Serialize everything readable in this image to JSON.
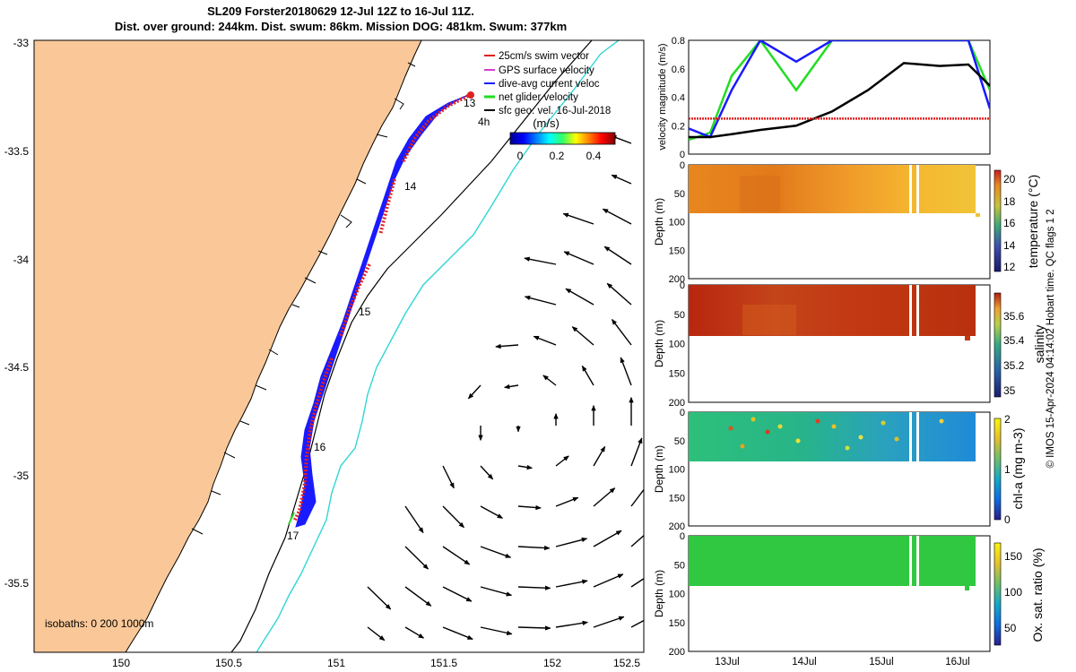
{
  "title_line1": "SL209 Forster20180629 12-Jul 12Z to 16-Jul 11Z.",
  "title_line2": "Dist. over ground: 244km. Dist. swum: 86km. Mission DOG: 481km. Swum: 377km",
  "credit": "© IMOS 15-Apr-2024 04:14:02 Hobart time. QC flags 1  2",
  "map": {
    "lon_ticks": [
      "150",
      "150.5",
      "151",
      "151.5",
      "152",
      "152.5"
    ],
    "lat_ticks": [
      "-33",
      "-33.5",
      "-34",
      "-34.5",
      "-35",
      "-35.5"
    ],
    "legend": [
      {
        "label": "25cm/s swim vector",
        "color": "#e02020"
      },
      {
        "label": "GPS surface velocity",
        "color": "#d040d0"
      },
      {
        "label": "dive-avg current veloc",
        "color": "#1a1aff"
      },
      {
        "label": "net glider velocity",
        "color": "#22dd22"
      },
      {
        "label": "sfc geo. vel. 16-Jul-2018",
        "color": "#000000"
      }
    ],
    "colorbar_label": "(m/s)",
    "colorbar_ticks": [
      "0",
      "0.2",
      "0.4"
    ],
    "day_labels": [
      "13",
      "14",
      "15",
      "16",
      "17"
    ],
    "hour_label": "4h",
    "isobath_label": "isobaths: 0   200  1000m"
  },
  "panels": {
    "velocity": {
      "ylabel": "velocity magnitude (m/s)",
      "yticks": [
        "0",
        "0.2",
        "0.4",
        "0.6",
        "0.8"
      ]
    },
    "temperature": {
      "ylabel": "temperature (°C)",
      "cticks": [
        "12",
        "14",
        "16",
        "18",
        "20"
      ]
    },
    "salinity": {
      "ylabel": "salinity",
      "cticks": [
        "35",
        "35.2",
        "35.4",
        "35.6"
      ]
    },
    "chla": {
      "ylabel": "chl-a (mg m-3)",
      "cticks": [
        "0",
        "1",
        "2"
      ]
    },
    "oxygen": {
      "ylabel": "Ox. sat. ratio (%)",
      "cticks": [
        "50",
        "100",
        "150"
      ]
    },
    "depth_label": "Depth (m)",
    "depth_ticks": [
      "0",
      "50",
      "100",
      "150",
      "200"
    ],
    "time_ticks": [
      "13Jul",
      "14Jul",
      "15Jul",
      "16Jul"
    ]
  },
  "chart_data": {
    "type": "line",
    "title": "velocity magnitude (m/s)",
    "xlabel": "",
    "ylabel": "velocity magnitude (m/s)",
    "ylim": [
      0,
      0.8
    ],
    "x": [
      0,
      0.3,
      0.6,
      1.0,
      1.5,
      2.0,
      2.5,
      3.0,
      3.5,
      3.9,
      4.2
    ],
    "series": [
      {
        "name": "net glider velocity",
        "color": "#22dd22",
        "values": [
          0.1,
          0.15,
          0.55,
          0.8,
          0.45,
          0.8,
          0.8,
          0.8,
          0.8,
          0.8,
          0.45
        ]
      },
      {
        "name": "dive-avg current veloc",
        "color": "#1a1aff",
        "values": [
          0.18,
          0.12,
          0.45,
          0.8,
          0.65,
          0.8,
          0.8,
          0.8,
          0.8,
          0.8,
          0.32
        ]
      },
      {
        "name": "sfc geo. vel.",
        "color": "#000000",
        "values": [
          0.12,
          0.12,
          0.14,
          0.17,
          0.2,
          0.3,
          0.45,
          0.64,
          0.62,
          0.63,
          0.48
        ]
      },
      {
        "name": "25cm/s swim vector",
        "color": "#e02020",
        "values": [
          0.25,
          0.25,
          0.25,
          0.25,
          0.25,
          0.25,
          0.25,
          0.25,
          0.25,
          0.25,
          0.25
        ]
      }
    ]
  }
}
